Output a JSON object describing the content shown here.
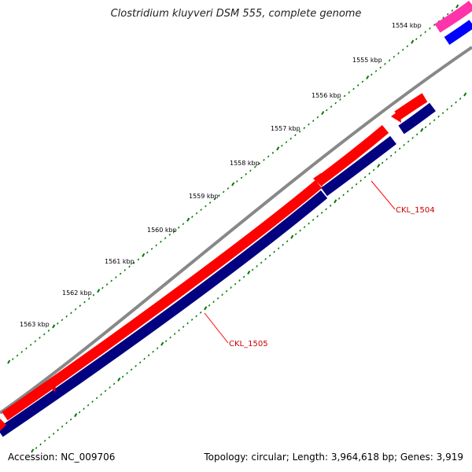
{
  "header": {
    "title": "Clostridium kluyveri DSM 555, complete genome"
  },
  "footer": {
    "accession": "Accession: NC_009706",
    "summary": "Topology: circular; Length: 3,964,618 bp; Genes: 3,919"
  },
  "colors": {
    "backbone": "#888888",
    "forward_gene": "#ff0000",
    "reverse_cds": "#000080",
    "reverse_gene_top": "#0000ff",
    "other_feature": "#ff33aa",
    "ticks": "#007700",
    "label_line": "#ff0000"
  },
  "ruler_labels": [
    {
      "name": "ruler-label-1554",
      "text": "1554 kbp"
    },
    {
      "name": "ruler-label-1555",
      "text": "1555 kbp"
    },
    {
      "name": "ruler-label-1556",
      "text": "1556 kbp"
    },
    {
      "name": "ruler-label-1557",
      "text": "1557 kbp"
    },
    {
      "name": "ruler-label-1558",
      "text": "1558 kbp"
    },
    {
      "name": "ruler-label-1559",
      "text": "1559 kbp"
    },
    {
      "name": "ruler-label-1560",
      "text": "1560 kbp"
    },
    {
      "name": "ruler-label-1561",
      "text": "1561 kbp"
    },
    {
      "name": "ruler-label-1562",
      "text": "1562 kbp"
    },
    {
      "name": "ruler-label-1563",
      "text": "1563 kbp"
    }
  ],
  "gene_labels": [
    {
      "name": "gene-label-ckl-1504",
      "text": "CKL_1504"
    },
    {
      "name": "gene-label-ckl-1505",
      "text": "CKL_1505"
    }
  ]
}
